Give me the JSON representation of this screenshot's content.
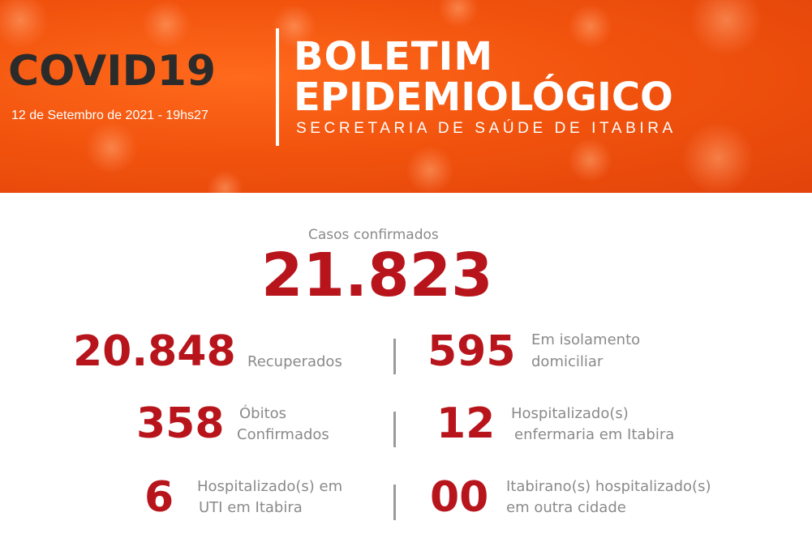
{
  "header": {
    "covid_title": "COVID19",
    "date": "12 de Setembro de 2021 - 19hs27",
    "title_line1": "BOLETIM",
    "title_line2": "EPIDEMIOLÓGICO",
    "subtitle": "SECRETARIA DE SAÚDE DE ITABIRA",
    "colors": {
      "banner": "#f2540e",
      "dark_text": "#2b2b2b",
      "number": "#b8141b",
      "label": "#8a8a8a"
    }
  },
  "confirmed": {
    "label": "Casos confirmados",
    "value": "21.823"
  },
  "stats": {
    "recovered": {
      "value": "20.848",
      "label": "Recuperados"
    },
    "isolation": {
      "value": "595",
      "label_line1": "Em isolamento",
      "label_line2": "domiciliar"
    },
    "deaths": {
      "value": "358",
      "label_line1": "Óbitos",
      "label_line2": "Confirmados"
    },
    "ward": {
      "value": "12",
      "label_line1": "Hospitalizado(s)",
      "label_line2": "enfermaria em Itabira"
    },
    "icu": {
      "value": "6",
      "label_line1": "Hospitalizado(s) em",
      "label_line2": "UTI em Itabira"
    },
    "other_city": {
      "value": "00",
      "label_line1": "Itabirano(s) hospitalizado(s)",
      "label_line2": "em outra cidade"
    }
  }
}
